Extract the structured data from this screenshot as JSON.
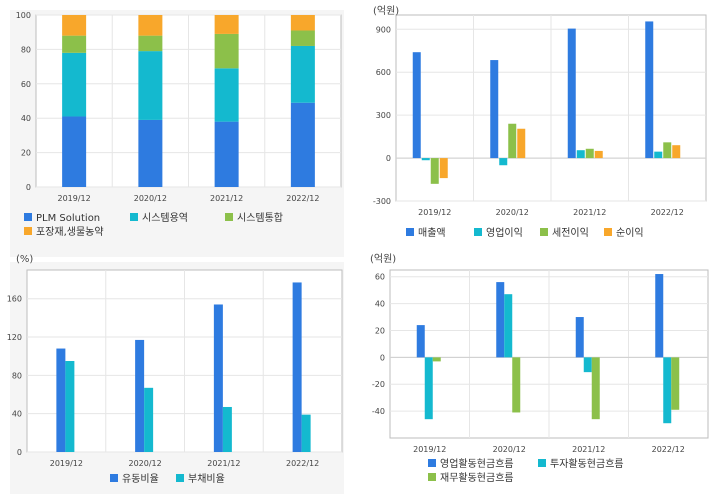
{
  "colors": {
    "blue": "#2e7be0",
    "cyan": "#14b9cf",
    "green": "#8cc04a",
    "orange": "#f8a72b",
    "grid": "#e6e6e6",
    "plot_border": "#bdbdbd",
    "panel_bg": "#f5f5f5",
    "text": "#444444"
  },
  "chart_data": [
    {
      "id": "chart1",
      "type": "bar",
      "stacked": true,
      "unit": "",
      "categories": [
        "2019/12",
        "2020/12",
        "2021/12",
        "2022/12"
      ],
      "ylim": [
        0,
        100
      ],
      "yticks": [
        0,
        20,
        40,
        60,
        80,
        100
      ],
      "grid": true,
      "legend": "bottom",
      "series": [
        {
          "name": "PLM Solution",
          "color": "blue",
          "values": [
            41,
            39,
            38,
            49
          ]
        },
        {
          "name": "시스템용역",
          "color": "cyan",
          "values": [
            37,
            40,
            31,
            33
          ]
        },
        {
          "name": "시스템통합",
          "color": "green",
          "values": [
            10,
            9,
            20,
            9
          ]
        },
        {
          "name": "포장재,생물농약",
          "color": "orange",
          "values": [
            12,
            12,
            11,
            9
          ]
        }
      ]
    },
    {
      "id": "chart2",
      "type": "bar",
      "stacked": false,
      "unit": "(억원)",
      "categories": [
        "2019/12",
        "2020/12",
        "2021/12",
        "2022/12"
      ],
      "ylim": [
        -300,
        1000
      ],
      "yticks": [
        -300,
        0,
        300,
        600,
        900
      ],
      "grid": true,
      "legend": "bottom",
      "series": [
        {
          "name": "매출액",
          "color": "blue",
          "values": [
            740,
            685,
            905,
            955
          ]
        },
        {
          "name": "영업이익",
          "color": "cyan",
          "values": [
            -15,
            -50,
            55,
            45
          ]
        },
        {
          "name": "세전이익",
          "color": "green",
          "values": [
            -180,
            240,
            65,
            110
          ]
        },
        {
          "name": "순이익",
          "color": "orange",
          "values": [
            -140,
            205,
            50,
            90
          ]
        }
      ]
    },
    {
      "id": "chart3",
      "type": "bar",
      "stacked": false,
      "unit": "(%)",
      "categories": [
        "2019/12",
        "2020/12",
        "2021/12",
        "2022/12"
      ],
      "ylim": [
        0,
        190
      ],
      "yticks": [
        0,
        40,
        80,
        120,
        160
      ],
      "grid": true,
      "legend": "bottom",
      "series": [
        {
          "name": "유동비율",
          "color": "blue",
          "values": [
            108,
            117,
            154,
            177
          ]
        },
        {
          "name": "부채비율",
          "color": "cyan",
          "values": [
            95,
            67,
            47,
            39
          ]
        }
      ]
    },
    {
      "id": "chart4",
      "type": "bar",
      "stacked": false,
      "unit": "(억원)",
      "categories": [
        "2019/12",
        "2020/12",
        "2021/12",
        "2022/12"
      ],
      "ylim": [
        -60,
        65
      ],
      "yticks": [
        -40,
        -20,
        0,
        20,
        40,
        60
      ],
      "grid": true,
      "legend": "bottom",
      "series": [
        {
          "name": "영업활동현금흐름",
          "color": "blue",
          "values": [
            24,
            56,
            30,
            62
          ]
        },
        {
          "name": "투자활동현금흐름",
          "color": "cyan",
          "values": [
            -46,
            47,
            -11,
            -49
          ]
        },
        {
          "name": "재무활동현금흐름",
          "color": "green",
          "values": [
            -3,
            -41,
            -46,
            -39
          ]
        }
      ]
    }
  ]
}
